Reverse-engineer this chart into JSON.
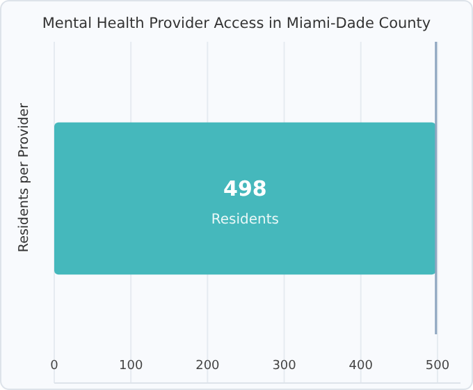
{
  "chart_data": {
    "type": "bar",
    "orientation": "horizontal",
    "title": "Mental Health Provider Access in Miami-Dade County",
    "ylabel": "Residents per Provider",
    "categories": [
      null
    ],
    "values": [
      498
    ],
    "color": "#45b8bc",
    "value_labels": [
      "498"
    ],
    "annotations": [
      "Residents"
    ],
    "xlim": [
      0,
      530
    ],
    "xticks": [
      0,
      100,
      200,
      300,
      400,
      500
    ],
    "grid": "x",
    "ref_lines": [
      {
        "axis": "x",
        "value": 498,
        "color": "#8fa6c0"
      }
    ]
  }
}
